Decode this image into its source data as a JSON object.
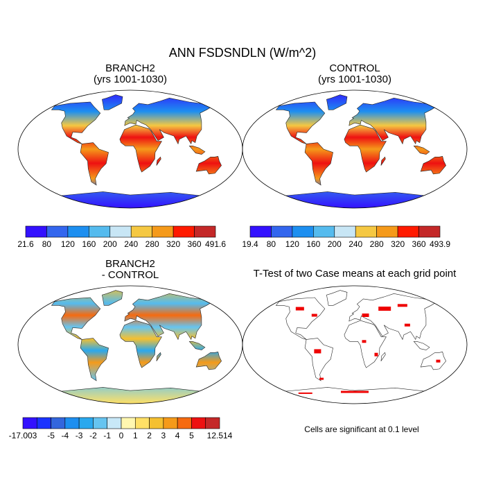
{
  "title": "ANN FSDSNDLN (W/m^2)",
  "panels": [
    {
      "title": "BRANCH2",
      "subtitle": "(yrs 1001-1030)",
      "colorbar": {
        "labels": [
          21.6,
          80,
          120,
          160,
          200,
          240,
          280,
          320,
          360,
          491.6
        ],
        "colors": [
          "#3311ff",
          "#3366ee",
          "#1d8ff0",
          "#55bbee",
          "#c8e6f5",
          "#f5c842",
          "#f59a1a",
          "#ff1a00",
          "#c42828"
        ]
      }
    },
    {
      "title": "CONTROL",
      "subtitle": "(yrs 1001-1030)",
      "colorbar": {
        "labels": [
          19.4,
          80,
          120,
          160,
          200,
          240,
          280,
          320,
          360,
          493.9
        ],
        "colors": [
          "#3311ff",
          "#3366ee",
          "#1d8ff0",
          "#55bbee",
          "#c8e6f5",
          "#f5c842",
          "#f59a1a",
          "#ff1a00",
          "#c42828"
        ]
      }
    },
    {
      "title": "BRANCH2",
      "subtitle": "- CONTROL",
      "colorbar": {
        "labels": [
          -17.003,
          null,
          -5,
          -4,
          -3,
          -2,
          -1,
          0,
          1,
          2,
          3,
          4,
          5,
          null,
          12.514
        ],
        "colors": [
          "#3311ff",
          "#1a33ff",
          "#3366dd",
          "#1d8ff0",
          "#2aa8ee",
          "#66c4f0",
          "#c8e8f7",
          "#fff7b0",
          "#ffe066",
          "#f5c030",
          "#f59a1a",
          "#f56a10",
          "#ee1111",
          "#c42828"
        ]
      }
    },
    {
      "title": "T-Test of two Case means at each grid point",
      "note": "Cells are significant at 0.1 level"
    }
  ]
}
